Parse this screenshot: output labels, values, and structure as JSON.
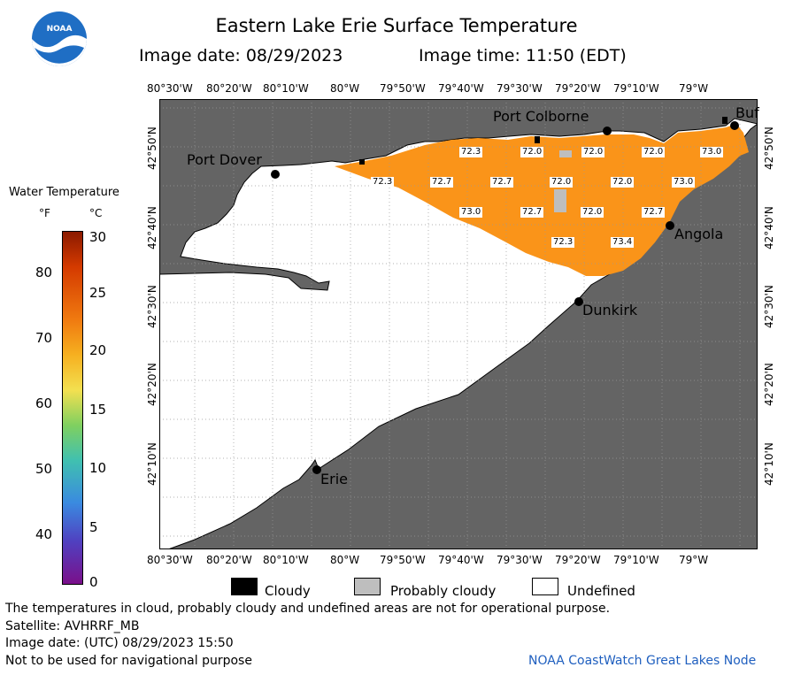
{
  "header": {
    "title": "Eastern Lake Erie Surface Temperature",
    "image_date": "Image date: 08/29/2023",
    "image_time": "Image time: 11:50 (EDT)",
    "logo_text": "NOAA"
  },
  "map": {
    "lon_ticks": [
      "80°30'W",
      "80°20'W",
      "80°10'W",
      "80°W",
      "79°50'W",
      "79°40'W",
      "79°30'W",
      "79°20'W",
      "79°10'W",
      "79°W"
    ],
    "lat_ticks": [
      "42°50'N",
      "42°40'N",
      "42°30'N",
      "42°20'N",
      "42°10'N"
    ],
    "places": [
      "Port Colborne",
      "Buffalo",
      "Port Dover",
      "Angola",
      "Dunkirk",
      "Erie"
    ],
    "place_labels": [
      "Port Colborne",
      "Buf",
      "Port Dover",
      "Angola",
      "Dunkirk",
      "Erie"
    ],
    "temperature_labels_f": [
      "72.3",
      "72.0",
      "72.0",
      "72.0",
      "73.0",
      "72.3",
      "72.7",
      "72.7",
      "72.0",
      "72.0",
      "73.0",
      "73.0",
      "72.7",
      "72.0",
      "72.7",
      "72.3",
      "73.4"
    ],
    "colors": {
      "land": "#646464",
      "water_undefined": "#ffffff",
      "water_temp": "#fa9419",
      "grid": "#999999"
    }
  },
  "legend": {
    "title": "Water Temperature",
    "unit_f": "°F",
    "unit_c": "°C",
    "f_ticks": [
      "80",
      "70",
      "60",
      "50",
      "40"
    ],
    "c_ticks": [
      "30",
      "25",
      "20",
      "15",
      "10",
      "5",
      "0"
    ]
  },
  "key": [
    {
      "label": "Cloudy",
      "color": "#000000"
    },
    {
      "label": "Probably cloudy",
      "color": "#bebebe"
    },
    {
      "label": "Undefined",
      "color": "#ffffff"
    }
  ],
  "footer": {
    "disclaimer": "The temperatures in cloud, probably cloudy and undefined areas are not for operational purpose.",
    "satellite": "Satellite: AVHRRF_MB",
    "utc": "Image date: (UTC) 08/29/2023  15:50",
    "nav": "Not to be used for navigational purpose",
    "credit": "NOAA CoastWatch Great Lakes Node"
  }
}
